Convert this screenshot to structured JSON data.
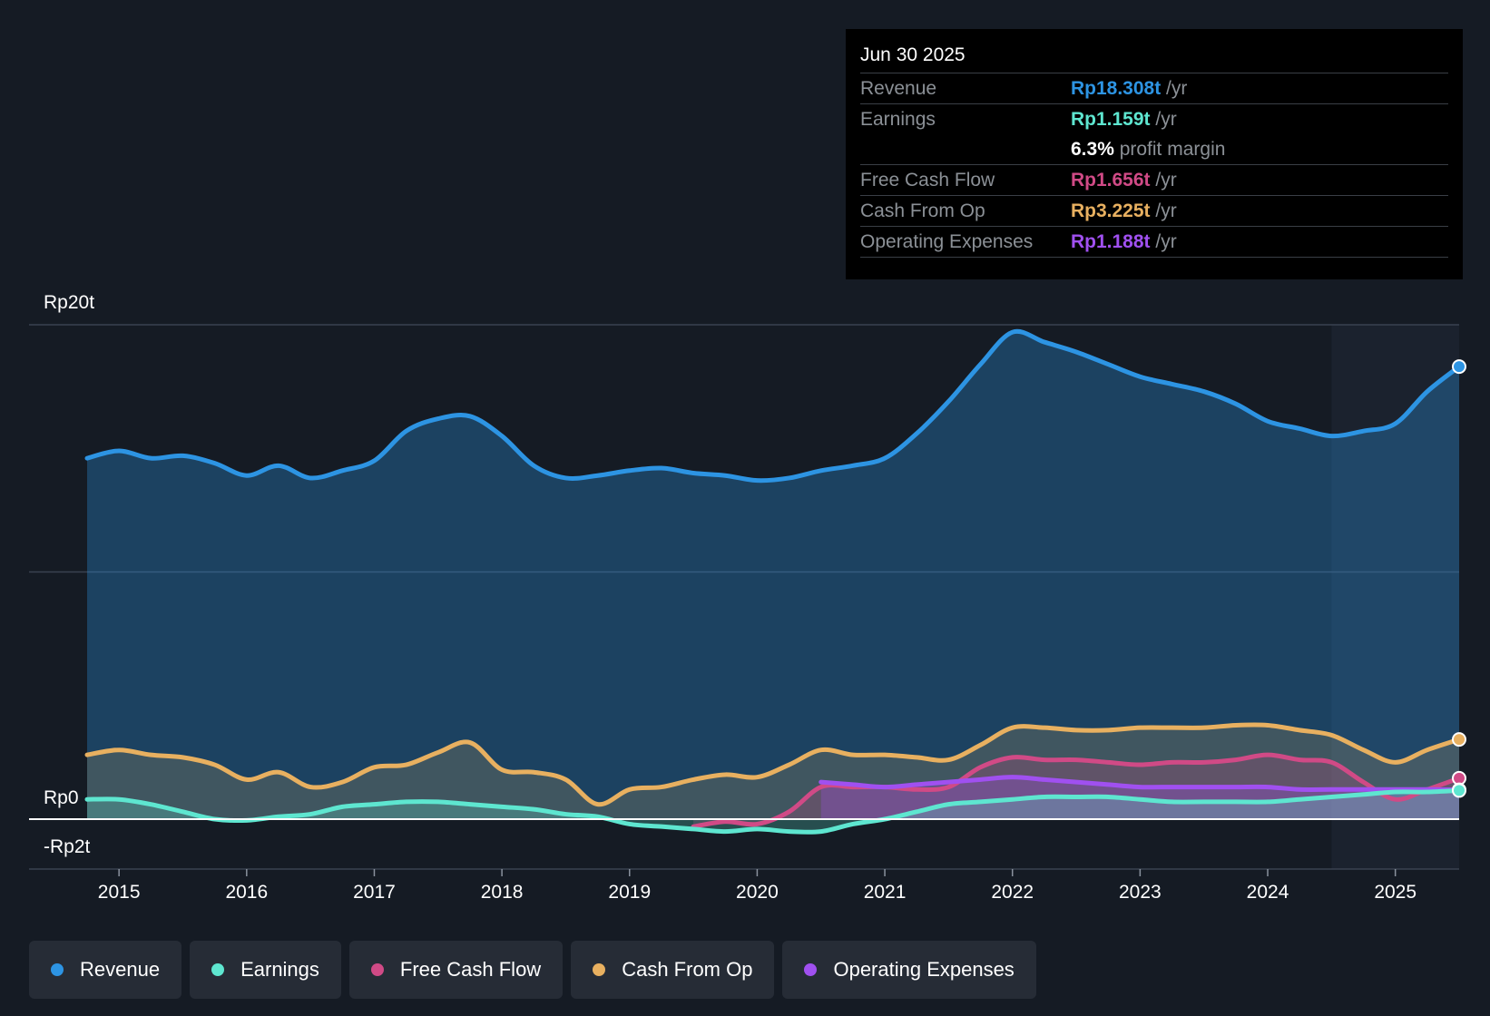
{
  "tooltip": {
    "date": "Jun 30 2025",
    "rows": [
      {
        "label": "Revenue",
        "value": "Rp18.308t",
        "unit": " /yr",
        "color": "#2d94e3"
      },
      {
        "label": "Earnings",
        "value": "Rp1.159t",
        "unit": " /yr",
        "color": "#5ee6d0"
      },
      {
        "label": "",
        "value": "6.3%",
        "unit": " profit margin",
        "color": "#ffffff"
      },
      {
        "label": "Free Cash Flow",
        "value": "Rp1.656t",
        "unit": " /yr",
        "color": "#d04a86"
      },
      {
        "label": "Cash From Op",
        "value": "Rp3.225t",
        "unit": " /yr",
        "color": "#e8b060"
      },
      {
        "label": "Operating Expenses",
        "value": "Rp1.188t",
        "unit": " /yr",
        "color": "#a050f0"
      }
    ]
  },
  "legend": [
    {
      "label": "Revenue",
      "color": "#2d94e3"
    },
    {
      "label": "Earnings",
      "color": "#5ee6d0"
    },
    {
      "label": "Free Cash Flow",
      "color": "#d04a86"
    },
    {
      "label": "Cash From Op",
      "color": "#e8b060"
    },
    {
      "label": "Operating Expenses",
      "color": "#a050f0"
    }
  ],
  "chart_data": {
    "type": "area",
    "title": "",
    "xlabel": "",
    "ylabel": "",
    "x_ticks": [
      "2015",
      "2016",
      "2017",
      "2018",
      "2019",
      "2020",
      "2021",
      "2022",
      "2023",
      "2024",
      "2025"
    ],
    "y_tick_labels": [
      {
        "value": 20,
        "label": "Rp20t"
      },
      {
        "value": 0,
        "label": "Rp0"
      },
      {
        "value": -2,
        "label": "-Rp2t"
      }
    ],
    "ylim": [
      -2,
      20
    ],
    "xlim": [
      2014.0,
      2025.5
    ],
    "forecast_region_start": 2024.5,
    "series": [
      {
        "name": "Revenue",
        "color": "#2d94e3",
        "fill": true,
        "points": [
          [
            2014.75,
            14.6
          ],
          [
            2015.0,
            14.9
          ],
          [
            2015.25,
            14.6
          ],
          [
            2015.5,
            14.7
          ],
          [
            2015.75,
            14.4
          ],
          [
            2016.0,
            13.9
          ],
          [
            2016.25,
            14.3
          ],
          [
            2016.5,
            13.8
          ],
          [
            2016.75,
            14.1
          ],
          [
            2017.0,
            14.5
          ],
          [
            2017.25,
            15.7
          ],
          [
            2017.5,
            16.2
          ],
          [
            2017.75,
            16.3
          ],
          [
            2018.0,
            15.5
          ],
          [
            2018.25,
            14.3
          ],
          [
            2018.5,
            13.8
          ],
          [
            2018.75,
            13.9
          ],
          [
            2019.0,
            14.1
          ],
          [
            2019.25,
            14.2
          ],
          [
            2019.5,
            14.0
          ],
          [
            2019.75,
            13.9
          ],
          [
            2020.0,
            13.7
          ],
          [
            2020.25,
            13.8
          ],
          [
            2020.5,
            14.1
          ],
          [
            2020.75,
            14.3
          ],
          [
            2021.0,
            14.6
          ],
          [
            2021.25,
            15.6
          ],
          [
            2021.5,
            16.9
          ],
          [
            2021.75,
            18.4
          ],
          [
            2022.0,
            19.7
          ],
          [
            2022.25,
            19.3
          ],
          [
            2022.5,
            18.9
          ],
          [
            2022.75,
            18.4
          ],
          [
            2023.0,
            17.9
          ],
          [
            2023.25,
            17.6
          ],
          [
            2023.5,
            17.3
          ],
          [
            2023.75,
            16.8
          ],
          [
            2024.0,
            16.1
          ],
          [
            2024.25,
            15.8
          ],
          [
            2024.5,
            15.5
          ],
          [
            2024.75,
            15.7
          ],
          [
            2025.0,
            16.0
          ],
          [
            2025.25,
            17.3
          ],
          [
            2025.5,
            18.308
          ]
        ]
      },
      {
        "name": "Cash From Op",
        "color": "#e8b060",
        "fill": true,
        "points": [
          [
            2014.75,
            2.6
          ],
          [
            2015.0,
            2.8
          ],
          [
            2015.25,
            2.6
          ],
          [
            2015.5,
            2.5
          ],
          [
            2015.75,
            2.2
          ],
          [
            2016.0,
            1.6
          ],
          [
            2016.25,
            1.9
          ],
          [
            2016.5,
            1.3
          ],
          [
            2016.75,
            1.5
          ],
          [
            2017.0,
            2.1
          ],
          [
            2017.25,
            2.2
          ],
          [
            2017.5,
            2.7
          ],
          [
            2017.75,
            3.1
          ],
          [
            2018.0,
            2.0
          ],
          [
            2018.25,
            1.9
          ],
          [
            2018.5,
            1.6
          ],
          [
            2018.75,
            0.6
          ],
          [
            2019.0,
            1.2
          ],
          [
            2019.25,
            1.3
          ],
          [
            2019.5,
            1.6
          ],
          [
            2019.75,
            1.8
          ],
          [
            2020.0,
            1.7
          ],
          [
            2020.25,
            2.2
          ],
          [
            2020.5,
            2.8
          ],
          [
            2020.75,
            2.6
          ],
          [
            2021.0,
            2.6
          ],
          [
            2021.25,
            2.5
          ],
          [
            2021.5,
            2.4
          ],
          [
            2021.75,
            3.0
          ],
          [
            2022.0,
            3.7
          ],
          [
            2022.25,
            3.7
          ],
          [
            2022.5,
            3.6
          ],
          [
            2022.75,
            3.6
          ],
          [
            2023.0,
            3.7
          ],
          [
            2023.25,
            3.7
          ],
          [
            2023.5,
            3.7
          ],
          [
            2023.75,
            3.8
          ],
          [
            2024.0,
            3.8
          ],
          [
            2024.25,
            3.6
          ],
          [
            2024.5,
            3.4
          ],
          [
            2024.75,
            2.8
          ],
          [
            2025.0,
            2.3
          ],
          [
            2025.25,
            2.8
          ],
          [
            2025.5,
            3.225
          ]
        ]
      },
      {
        "name": "Free Cash Flow",
        "color": "#d04a86",
        "fill": true,
        "points": [
          [
            2019.5,
            -0.3
          ],
          [
            2019.75,
            -0.1
          ],
          [
            2020.0,
            -0.2
          ],
          [
            2020.25,
            0.3
          ],
          [
            2020.5,
            1.3
          ],
          [
            2020.75,
            1.3
          ],
          [
            2021.0,
            1.3
          ],
          [
            2021.25,
            1.2
          ],
          [
            2021.5,
            1.3
          ],
          [
            2021.75,
            2.1
          ],
          [
            2022.0,
            2.5
          ],
          [
            2022.25,
            2.4
          ],
          [
            2022.5,
            2.4
          ],
          [
            2022.75,
            2.3
          ],
          [
            2023.0,
            2.2
          ],
          [
            2023.25,
            2.3
          ],
          [
            2023.5,
            2.3
          ],
          [
            2023.75,
            2.4
          ],
          [
            2024.0,
            2.6
          ],
          [
            2024.25,
            2.4
          ],
          [
            2024.5,
            2.3
          ],
          [
            2024.75,
            1.5
          ],
          [
            2025.0,
            0.8
          ],
          [
            2025.25,
            1.2
          ],
          [
            2025.5,
            1.656
          ]
        ]
      },
      {
        "name": "Operating Expenses",
        "color": "#a050f0",
        "fill": true,
        "points": [
          [
            2020.5,
            1.5
          ],
          [
            2020.75,
            1.4
          ],
          [
            2021.0,
            1.3
          ],
          [
            2021.25,
            1.4
          ],
          [
            2021.5,
            1.5
          ],
          [
            2021.75,
            1.6
          ],
          [
            2022.0,
            1.7
          ],
          [
            2022.25,
            1.6
          ],
          [
            2022.5,
            1.5
          ],
          [
            2022.75,
            1.4
          ],
          [
            2023.0,
            1.3
          ],
          [
            2023.25,
            1.3
          ],
          [
            2023.5,
            1.3
          ],
          [
            2023.75,
            1.3
          ],
          [
            2024.0,
            1.3
          ],
          [
            2024.25,
            1.2
          ],
          [
            2024.5,
            1.2
          ],
          [
            2024.75,
            1.2
          ],
          [
            2025.0,
            1.2
          ],
          [
            2025.25,
            1.2
          ],
          [
            2025.5,
            1.188
          ]
        ]
      },
      {
        "name": "Earnings",
        "color": "#5ee6d0",
        "fill": true,
        "points": [
          [
            2014.75,
            0.8
          ],
          [
            2015.0,
            0.8
          ],
          [
            2015.25,
            0.6
          ],
          [
            2015.5,
            0.3
          ],
          [
            2015.75,
            0.0
          ],
          [
            2016.0,
            -0.05
          ],
          [
            2016.25,
            0.1
          ],
          [
            2016.5,
            0.2
          ],
          [
            2016.75,
            0.5
          ],
          [
            2017.0,
            0.6
          ],
          [
            2017.25,
            0.7
          ],
          [
            2017.5,
            0.7
          ],
          [
            2017.75,
            0.6
          ],
          [
            2018.0,
            0.5
          ],
          [
            2018.25,
            0.4
          ],
          [
            2018.5,
            0.2
          ],
          [
            2018.75,
            0.1
          ],
          [
            2019.0,
            -0.2
          ],
          [
            2019.25,
            -0.3
          ],
          [
            2019.5,
            -0.4
          ],
          [
            2019.75,
            -0.5
          ],
          [
            2020.0,
            -0.4
          ],
          [
            2020.25,
            -0.5
          ],
          [
            2020.5,
            -0.5
          ],
          [
            2020.75,
            -0.2
          ],
          [
            2021.0,
            0.0
          ],
          [
            2021.25,
            0.3
          ],
          [
            2021.5,
            0.6
          ],
          [
            2021.75,
            0.7
          ],
          [
            2022.0,
            0.8
          ],
          [
            2022.25,
            0.9
          ],
          [
            2022.5,
            0.9
          ],
          [
            2022.75,
            0.9
          ],
          [
            2023.0,
            0.8
          ],
          [
            2023.25,
            0.7
          ],
          [
            2023.5,
            0.7
          ],
          [
            2023.75,
            0.7
          ],
          [
            2024.0,
            0.7
          ],
          [
            2024.25,
            0.8
          ],
          [
            2024.5,
            0.9
          ],
          [
            2024.75,
            1.0
          ],
          [
            2025.0,
            1.1
          ],
          [
            2025.25,
            1.1
          ],
          [
            2025.5,
            1.159
          ]
        ]
      }
    ]
  }
}
